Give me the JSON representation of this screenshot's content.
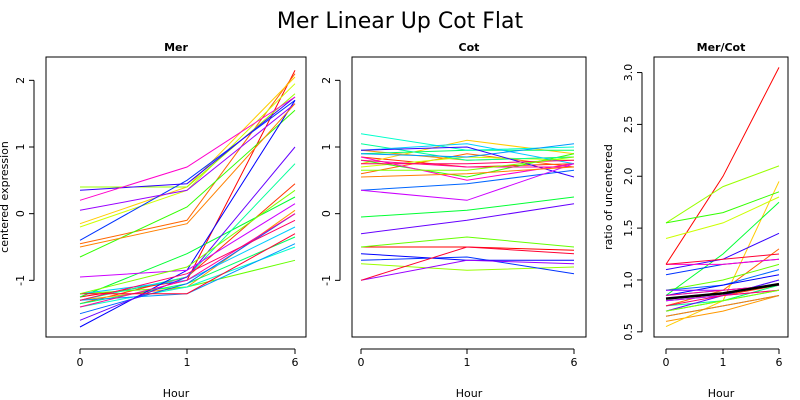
{
  "title": "Mer Linear Up Cot Flat",
  "chart_data": [
    {
      "type": "line",
      "title": "Mer",
      "xlabel": "Hour",
      "ylabel": "centered expression",
      "x": [
        "0",
        "1",
        "6"
      ],
      "xticks": [
        "0",
        "1",
        "6"
      ],
      "yticks": [
        "-1",
        "0",
        "1",
        "2"
      ],
      "ylim": [
        -1.85,
        2.35
      ],
      "series": [
        {
          "color": "#ff0000",
          "values": [
            -1.25,
            -1.0,
            2.15
          ]
        },
        {
          "color": "#ff3300",
          "values": [
            -1.35,
            -0.95,
            0.45
          ]
        },
        {
          "color": "#ff6600",
          "values": [
            -0.45,
            -0.1,
            2.1
          ]
        },
        {
          "color": "#ff9900",
          "values": [
            -1.3,
            -1.1,
            0.05
          ]
        },
        {
          "color": "#ffcc00",
          "values": [
            -0.15,
            0.4,
            2.05
          ]
        },
        {
          "color": "#ccff00",
          "values": [
            -0.2,
            0.35,
            1.95
          ]
        },
        {
          "color": "#99ff00",
          "values": [
            0.4,
            0.4,
            1.8
          ]
        },
        {
          "color": "#66ff00",
          "values": [
            -1.2,
            -1.1,
            -0.7
          ]
        },
        {
          "color": "#33ff00",
          "values": [
            -0.65,
            0.1,
            1.55
          ]
        },
        {
          "color": "#00ff33",
          "values": [
            -1.25,
            -0.6,
            0.25
          ]
        },
        {
          "color": "#00ff66",
          "values": [
            -1.35,
            -1.05,
            -0.35
          ]
        },
        {
          "color": "#00ff99",
          "values": [
            -1.3,
            -0.95,
            0.75
          ]
        },
        {
          "color": "#00ffcc",
          "values": [
            -1.4,
            -1.1,
            -0.5
          ]
        },
        {
          "color": "#00ccff",
          "values": [
            -1.2,
            -1.0,
            -0.2
          ]
        },
        {
          "color": "#0099ff",
          "values": [
            -1.3,
            -1.2,
            -0.45
          ]
        },
        {
          "color": "#0066ff",
          "values": [
            -1.5,
            -1.05,
            0.0
          ]
        },
        {
          "color": "#0033ff",
          "values": [
            -0.4,
            0.5,
            1.7
          ]
        },
        {
          "color": "#0000ff",
          "values": [
            -1.7,
            -0.85,
            1.7
          ]
        },
        {
          "color": "#3300ff",
          "values": [
            0.35,
            0.45,
            1.75
          ]
        },
        {
          "color": "#6600ff",
          "values": [
            -1.6,
            -0.95,
            1.0
          ]
        },
        {
          "color": "#9900ff",
          "values": [
            0.05,
            0.35,
            1.65
          ]
        },
        {
          "color": "#cc00ff",
          "values": [
            -0.95,
            -0.85,
            0.15
          ]
        },
        {
          "color": "#ff00cc",
          "values": [
            0.2,
            0.7,
            1.75
          ]
        },
        {
          "color": "#ff0099",
          "values": [
            -1.4,
            -1.0,
            0.0
          ]
        },
        {
          "color": "#ff0066",
          "values": [
            -1.3,
            -0.9,
            -0.1
          ]
        },
        {
          "color": "#ff0033",
          "values": [
            -1.2,
            -1.2,
            -0.3
          ]
        },
        {
          "color": "#ff8000",
          "values": [
            -0.5,
            -0.15,
            1.65
          ]
        },
        {
          "color": "#80ff00",
          "values": [
            -1.2,
            -0.8,
            0.35
          ]
        }
      ]
    },
    {
      "type": "line",
      "title": "Cot",
      "xlabel": "Hour",
      "ylabel": "",
      "x": [
        "0",
        "1",
        "6"
      ],
      "xticks": [
        "0",
        "1",
        "6"
      ],
      "yticks": [
        "-1",
        "0",
        "1",
        "2"
      ],
      "ylim": [
        -1.85,
        2.35
      ],
      "series": [
        {
          "color": "#ff0000",
          "values": [
            -0.5,
            -0.5,
            -0.55
          ]
        },
        {
          "color": "#ff3300",
          "values": [
            0.85,
            0.7,
            0.75
          ]
        },
        {
          "color": "#ff6600",
          "values": [
            0.6,
            0.9,
            0.7
          ]
        },
        {
          "color": "#ff9900",
          "values": [
            0.95,
            0.8,
            0.85
          ]
        },
        {
          "color": "#ffcc00",
          "values": [
            0.75,
            1.1,
            0.9
          ]
        },
        {
          "color": "#ccff00",
          "values": [
            0.7,
            0.85,
            0.8
          ]
        },
        {
          "color": "#99ff00",
          "values": [
            -0.75,
            -0.85,
            -0.8
          ]
        },
        {
          "color": "#66ff00",
          "values": [
            -0.5,
            -0.35,
            -0.5
          ]
        },
        {
          "color": "#33ff00",
          "values": [
            0.8,
            0.55,
            0.9
          ]
        },
        {
          "color": "#00ff33",
          "values": [
            -0.05,
            0.05,
            0.25
          ]
        },
        {
          "color": "#00ff66",
          "values": [
            0.9,
            0.95,
            0.95
          ]
        },
        {
          "color": "#00ff99",
          "values": [
            1.05,
            0.8,
            0.85
          ]
        },
        {
          "color": "#00ffcc",
          "values": [
            1.2,
            0.95,
            1.0
          ]
        },
        {
          "color": "#00ccff",
          "values": [
            0.95,
            1.05,
            0.75
          ]
        },
        {
          "color": "#0099ff",
          "values": [
            0.9,
            0.85,
            1.05
          ]
        },
        {
          "color": "#0066ff",
          "values": [
            0.35,
            0.45,
            0.65
          ]
        },
        {
          "color": "#0033ff",
          "values": [
            -0.7,
            -0.65,
            -0.9
          ]
        },
        {
          "color": "#0000ff",
          "values": [
            -0.6,
            -0.7,
            -0.7
          ]
        },
        {
          "color": "#3300ff",
          "values": [
            0.95,
            1.0,
            0.55
          ]
        },
        {
          "color": "#6600ff",
          "values": [
            -0.3,
            -0.1,
            0.15
          ]
        },
        {
          "color": "#9900ff",
          "values": [
            -1.0,
            -0.7,
            -0.75
          ]
        },
        {
          "color": "#cc00ff",
          "values": [
            0.35,
            0.2,
            0.75
          ]
        },
        {
          "color": "#ff00cc",
          "values": [
            0.85,
            0.5,
            0.75
          ]
        },
        {
          "color": "#ff0099",
          "values": [
            0.8,
            0.7,
            0.7
          ]
        },
        {
          "color": "#ff0066",
          "values": [
            0.75,
            0.75,
            0.8
          ]
        },
        {
          "color": "#ff0033",
          "values": [
            -1.0,
            -0.5,
            -0.6
          ]
        },
        {
          "color": "#ff8000",
          "values": [
            0.55,
            0.6,
            0.7
          ]
        },
        {
          "color": "#80ff00",
          "values": [
            0.65,
            0.65,
            0.85
          ]
        }
      ]
    },
    {
      "type": "line",
      "title": "Mer/Cot",
      "xlabel": "Hour",
      "ylabel": "ratio of uncentered",
      "x": [
        "0",
        "1",
        "6"
      ],
      "xticks": [
        "0",
        "1",
        "6"
      ],
      "yticks": [
        "0.5",
        "1.0",
        "1.5",
        "2.0",
        "2.5",
        "3.0"
      ],
      "ylim": [
        0.45,
        3.15
      ],
      "series": [
        {
          "color": "#ff0000",
          "values": [
            1.15,
            2.0,
            3.05
          ]
        },
        {
          "color": "#ff3300",
          "values": [
            0.8,
            0.85,
            0.95
          ]
        },
        {
          "color": "#ff6600",
          "values": [
            0.75,
            0.9,
            1.3
          ]
        },
        {
          "color": "#ff9900",
          "values": [
            0.6,
            0.7,
            0.85
          ]
        },
        {
          "color": "#ffcc00",
          "values": [
            0.55,
            0.8,
            1.95
          ]
        },
        {
          "color": "#ccff00",
          "values": [
            1.4,
            1.55,
            1.8
          ]
        },
        {
          "color": "#99ff00",
          "values": [
            1.55,
            1.9,
            2.1
          ]
        },
        {
          "color": "#66ff00",
          "values": [
            0.9,
            1.0,
            1.15
          ]
        },
        {
          "color": "#33ff00",
          "values": [
            1.55,
            1.65,
            1.85
          ]
        },
        {
          "color": "#00ff33",
          "values": [
            0.85,
            1.25,
            1.75
          ]
        },
        {
          "color": "#00ff66",
          "values": [
            0.7,
            0.8,
            0.95
          ]
        },
        {
          "color": "#00ff99",
          "values": [
            0.75,
            0.8,
            0.9
          ]
        },
        {
          "color": "#00ffcc",
          "values": [
            0.8,
            0.85,
            1.0
          ]
        },
        {
          "color": "#00ccff",
          "values": [
            0.85,
            0.9,
            0.95
          ]
        },
        {
          "color": "#0099ff",
          "values": [
            0.65,
            0.75,
            0.85
          ]
        },
        {
          "color": "#0066ff",
          "values": [
            0.9,
            0.95,
            1.1
          ]
        },
        {
          "color": "#0033ff",
          "values": [
            1.05,
            1.15,
            1.2
          ]
        },
        {
          "color": "#0000ff",
          "values": [
            0.85,
            0.95,
            1.05
          ]
        },
        {
          "color": "#3300ff",
          "values": [
            1.1,
            1.2,
            1.45
          ]
        },
        {
          "color": "#6600ff",
          "values": [
            0.7,
            0.85,
            1.0
          ]
        },
        {
          "color": "#9900ff",
          "values": [
            0.9,
            0.9,
            0.95
          ]
        },
        {
          "color": "#cc00ff",
          "values": [
            0.8,
            0.85,
            0.9
          ]
        },
        {
          "color": "#ff00cc",
          "values": [
            1.15,
            1.15,
            1.2
          ]
        },
        {
          "color": "#ff0099",
          "values": [
            0.85,
            0.9,
            0.95
          ]
        },
        {
          "color": "#ff0066",
          "values": [
            0.75,
            0.85,
            0.9
          ]
        },
        {
          "color": "#ff0033",
          "values": [
            1.15,
            1.2,
            1.25
          ]
        },
        {
          "color": "#ff8000",
          "values": [
            0.65,
            0.75,
            0.85
          ]
        },
        {
          "color": "#80ff00",
          "values": [
            0.7,
            0.8,
            0.9
          ]
        },
        {
          "color": "#000000",
          "values": [
            0.82,
            0.87,
            0.96
          ]
        }
      ]
    }
  ]
}
